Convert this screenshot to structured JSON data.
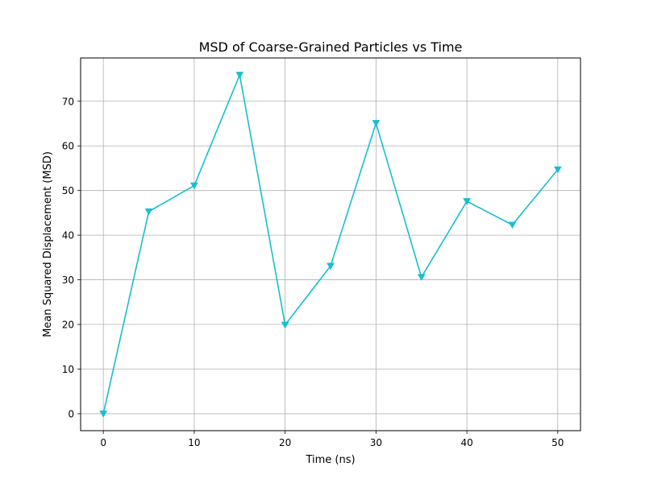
{
  "chart_data": {
    "type": "line",
    "title": "MSD of Coarse-Grained Particles vs Time",
    "xlabel": "Time (ns)",
    "ylabel": "Mean Squared Displacement (MSD)",
    "xlim": [
      -2.5,
      52.5
    ],
    "ylim": [
      -3.8,
      79.7
    ],
    "xticks": [
      0,
      10,
      20,
      30,
      40,
      50
    ],
    "yticks": [
      0,
      10,
      20,
      30,
      40,
      50,
      60,
      70
    ],
    "grid": true,
    "series": [
      {
        "color": "#17becf",
        "marker": "triangle-down",
        "x": [
          0,
          5,
          10,
          15,
          20,
          25,
          30,
          35,
          40,
          45,
          50
        ],
        "y": [
          0,
          45.3,
          51.1,
          75.9,
          19.9,
          33.1,
          65.1,
          30.6,
          47.6,
          42.3,
          54.7
        ]
      }
    ]
  }
}
